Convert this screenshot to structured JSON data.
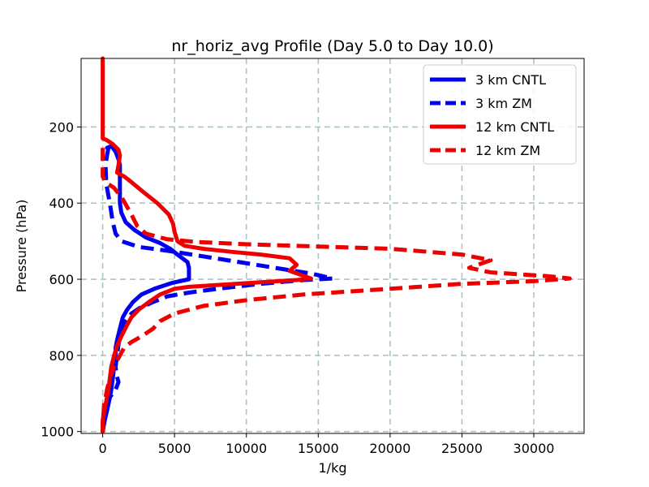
{
  "chart_data": {
    "type": "line",
    "title": "nr_horiz_avg Profile (Day 5.0 to Day 10.0)",
    "xlabel": "1/kg",
    "ylabel": "Pressure (hPa)",
    "xlim": [
      -1500,
      33500
    ],
    "ylim": [
      1005,
      20
    ],
    "y_inverted": true,
    "grid": true,
    "x_ticks": [
      0,
      5000,
      10000,
      15000,
      20000,
      25000,
      30000
    ],
    "y_ticks": [
      200,
      400,
      600,
      800,
      1000
    ],
    "legend_position": "top-right",
    "series": [
      {
        "name": "3 km CNTL",
        "color": "#0000ee",
        "style": "solid",
        "points": [
          [
            300,
            255
          ],
          [
            600,
            250
          ],
          [
            900,
            265
          ],
          [
            1100,
            285
          ],
          [
            1200,
            300
          ],
          [
            1200,
            400
          ],
          [
            1300,
            425
          ],
          [
            1600,
            450
          ],
          [
            2200,
            470
          ],
          [
            3000,
            490
          ],
          [
            4000,
            505
          ],
          [
            4700,
            520
          ],
          [
            5300,
            538
          ],
          [
            5900,
            555
          ],
          [
            6000,
            570
          ],
          [
            6000,
            600
          ],
          [
            4800,
            610
          ],
          [
            3600,
            625
          ],
          [
            2700,
            640
          ],
          [
            2100,
            660
          ],
          [
            1700,
            680
          ],
          [
            1400,
            700
          ],
          [
            1200,
            730
          ],
          [
            1000,
            760
          ],
          [
            900,
            780
          ],
          [
            900,
            800
          ],
          [
            800,
            830
          ],
          [
            700,
            860
          ],
          [
            600,
            890
          ],
          [
            450,
            920
          ],
          [
            300,
            945
          ],
          [
            150,
            970
          ],
          [
            0,
            1000
          ]
        ]
      },
      {
        "name": "3 km ZM",
        "color": "#0000ee",
        "style": "dashed",
        "points": [
          [
            400,
            255
          ],
          [
            300,
            275
          ],
          [
            200,
            300
          ],
          [
            250,
            350
          ],
          [
            500,
            400
          ],
          [
            700,
            450
          ],
          [
            900,
            480
          ],
          [
            1300,
            500
          ],
          [
            2500,
            515
          ],
          [
            4500,
            525
          ],
          [
            7000,
            540
          ],
          [
            9500,
            555
          ],
          [
            12000,
            570
          ],
          [
            14500,
            585
          ],
          [
            16000,
            598
          ],
          [
            14000,
            602
          ],
          [
            11000,
            612
          ],
          [
            8000,
            625
          ],
          [
            6000,
            635
          ],
          [
            4500,
            645
          ],
          [
            3500,
            660
          ],
          [
            2600,
            675
          ],
          [
            2000,
            690
          ],
          [
            1600,
            710
          ],
          [
            1300,
            740
          ],
          [
            1100,
            770
          ],
          [
            1000,
            800
          ],
          [
            900,
            830
          ],
          [
            950,
            850
          ],
          [
            1100,
            870
          ],
          [
            900,
            890
          ],
          [
            500,
            910
          ],
          [
            150,
            940
          ],
          [
            0,
            980
          ],
          [
            0,
            1000
          ]
        ]
      },
      {
        "name": "12 km CNTL",
        "color": "#ee0000",
        "style": "solid",
        "points": [
          [
            0,
            20
          ],
          [
            0,
            230
          ],
          [
            300,
            235
          ],
          [
            700,
            245
          ],
          [
            1100,
            260
          ],
          [
            1200,
            275
          ],
          [
            1100,
            300
          ],
          [
            1000,
            320
          ],
          [
            1500,
            330
          ],
          [
            2000,
            345
          ],
          [
            2800,
            370
          ],
          [
            3800,
            400
          ],
          [
            4600,
            430
          ],
          [
            4900,
            455
          ],
          [
            5000,
            475
          ],
          [
            5200,
            500
          ],
          [
            5700,
            512
          ],
          [
            7000,
            520
          ],
          [
            9000,
            528
          ],
          [
            11000,
            535
          ],
          [
            13000,
            545
          ],
          [
            13500,
            562
          ],
          [
            13000,
            578
          ],
          [
            14500,
            598
          ],
          [
            13500,
            602
          ],
          [
            11000,
            608
          ],
          [
            8000,
            615
          ],
          [
            6000,
            620
          ],
          [
            5000,
            625
          ],
          [
            4000,
            640
          ],
          [
            3200,
            660
          ],
          [
            2500,
            680
          ],
          [
            2000,
            700
          ],
          [
            1700,
            720
          ],
          [
            1300,
            750
          ],
          [
            1000,
            775
          ],
          [
            800,
            800
          ],
          [
            600,
            830
          ],
          [
            500,
            860
          ],
          [
            400,
            890
          ],
          [
            200,
            930
          ],
          [
            0,
            970
          ],
          [
            0,
            1000
          ]
        ]
      },
      {
        "name": "12 km ZM",
        "color": "#ee0000",
        "style": "dashed",
        "points": [
          [
            0,
            255
          ],
          [
            0,
            300
          ],
          [
            0,
            330
          ],
          [
            200,
            345
          ],
          [
            800,
            360
          ],
          [
            1400,
            390
          ],
          [
            2000,
            430
          ],
          [
            2400,
            460
          ],
          [
            3000,
            480
          ],
          [
            4500,
            495
          ],
          [
            6500,
            502
          ],
          [
            10000,
            508
          ],
          [
            15000,
            514
          ],
          [
            20000,
            520
          ],
          [
            25000,
            535
          ],
          [
            27000,
            550
          ],
          [
            25500,
            570
          ],
          [
            27000,
            582
          ],
          [
            31000,
            592
          ],
          [
            32500,
            598
          ],
          [
            30000,
            605
          ],
          [
            25000,
            612
          ],
          [
            20000,
            625
          ],
          [
            14000,
            640
          ],
          [
            10000,
            655
          ],
          [
            7000,
            670
          ],
          [
            5000,
            690
          ],
          [
            4000,
            710
          ],
          [
            3500,
            730
          ],
          [
            2700,
            750
          ],
          [
            2000,
            765
          ],
          [
            1500,
            780
          ],
          [
            1200,
            800
          ],
          [
            800,
            830
          ],
          [
            500,
            860
          ],
          [
            300,
            890
          ],
          [
            100,
            930
          ],
          [
            0,
            980
          ],
          [
            0,
            1000
          ]
        ]
      }
    ]
  }
}
